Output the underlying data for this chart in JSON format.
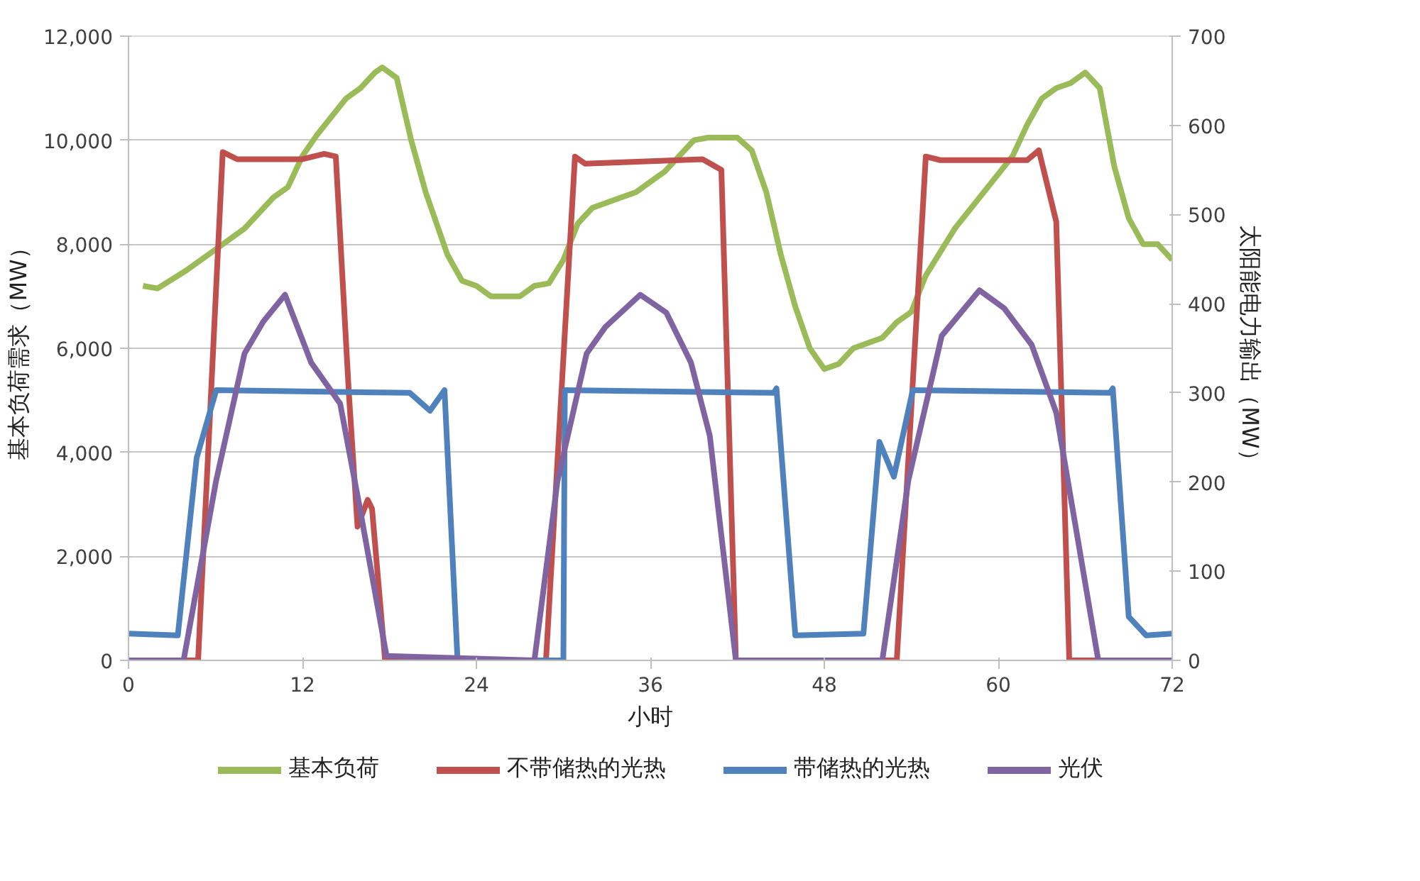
{
  "chart_data": {
    "type": "line",
    "xlabel": "小时",
    "ylabel": "基本负荷需求（MW）",
    "y2label": "太阳能电力输出（MW）",
    "xlim": [
      0,
      72
    ],
    "xticks": [
      0,
      12,
      24,
      36,
      48,
      60,
      72
    ],
    "ylim": [
      0,
      12000
    ],
    "yticks": [
      {
        "value": 0,
        "label": "0"
      },
      {
        "value": 2000,
        "label": "2,000"
      },
      {
        "value": 4000,
        "label": "4,000"
      },
      {
        "value": 6000,
        "label": "6,000"
      },
      {
        "value": 8000,
        "label": "8,000"
      },
      {
        "value": 10000,
        "label": "10,000"
      },
      {
        "value": 12000,
        "label": "12,000"
      }
    ],
    "y2lim": [
      0,
      700
    ],
    "y2ticks": [
      0,
      100,
      200,
      300,
      400,
      500,
      600,
      700
    ],
    "grid": "y",
    "legend": "bottom",
    "marker": "none",
    "line_style": "solid",
    "series": [
      {
        "name": "基本负荷",
        "color": "#9bbb59",
        "x": [
          1,
          2,
          4,
          6,
          8,
          10,
          11,
          12,
          13,
          15,
          16,
          17,
          17.5,
          18.5,
          19.5,
          20.5,
          22,
          23,
          24,
          25,
          27,
          28,
          29,
          30,
          31,
          32,
          34,
          35,
          37,
          38,
          39,
          40,
          42,
          43,
          44,
          45,
          46,
          47,
          48,
          49,
          50,
          52,
          53,
          54,
          55,
          57,
          59,
          61,
          62,
          63,
          64,
          65,
          66,
          67,
          68,
          69,
          70,
          71,
          72
        ],
        "values": [
          7200,
          7150,
          7500,
          7900,
          8300,
          8900,
          9100,
          9700,
          10100,
          10800,
          11000,
          11300,
          11400,
          11200,
          10000,
          9000,
          7800,
          7300,
          7200,
          7000,
          7000,
          7200,
          7250,
          7700,
          8400,
          8700,
          8900,
          9000,
          9400,
          9700,
          10000,
          10050,
          10050,
          9800,
          9000,
          7800,
          6800,
          6000,
          5600,
          5700,
          6000,
          6200,
          6500,
          6700,
          7400,
          8300,
          9000,
          9700,
          10300,
          10800,
          11000,
          11100,
          11300,
          11000,
          9500,
          8500,
          8000,
          8000,
          7700
        ]
      },
      {
        "name": "不带储热的光热",
        "color": "#c0504d",
        "axis": "y2",
        "x": [
          0,
          4.8,
          6.5,
          7.5,
          12,
          13.5,
          14.3,
          15.2,
          15.8,
          16.5,
          16.8,
          17.7,
          28.8,
          30.8,
          31.5,
          39.6,
          40.9,
          41.9,
          53.0,
          55.0,
          56,
          62,
          62.8,
          64.0,
          64.9,
          72
        ],
        "values": [
          0,
          0,
          570,
          562,
          562,
          568,
          565,
          300,
          150,
          180,
          170,
          0,
          0,
          565,
          557,
          562,
          550,
          0,
          0,
          565,
          561,
          561,
          572,
          492,
          0,
          0
        ]
      },
      {
        "name": "带储热的光热",
        "color": "#4f81bd",
        "axis": "y2",
        "x": [
          0,
          3.4,
          4.7,
          6.05,
          19.4,
          20.8,
          21.8,
          22.7,
          30.0,
          30.1,
          44.5,
          44.7,
          46.0,
          50.7,
          51.8,
          52.8,
          54.1,
          67.7,
          67.9,
          69.0,
          70.2,
          72
        ],
        "values": [
          30,
          28,
          227,
          303,
          300,
          280,
          303,
          0,
          0,
          303,
          300,
          305,
          28,
          30,
          245,
          206,
          303,
          300,
          305,
          49,
          28,
          30
        ]
      },
      {
        "name": "光伏",
        "color": "#8064a2",
        "axis": "y2",
        "x": [
          0,
          3.8,
          6.05,
          8.0,
          9.3,
          10.8,
          12.6,
          14.6,
          15.9,
          17.8,
          28.0,
          29.6,
          31.6,
          32.9,
          35.3,
          37.1,
          38.8,
          40.1,
          41.9,
          52.0,
          53.8,
          56.1,
          58.7,
          60.4,
          62.3,
          64.0,
          65.6,
          66.9,
          72
        ],
        "values": [
          0,
          0,
          202,
          344,
          380,
          410,
          334,
          288,
          176,
          5,
          0,
          202,
          344,
          374,
          410,
          390,
          334,
          252,
          0,
          0,
          202,
          364,
          415,
          395,
          354,
          278,
          125,
          0,
          0
        ]
      }
    ]
  }
}
